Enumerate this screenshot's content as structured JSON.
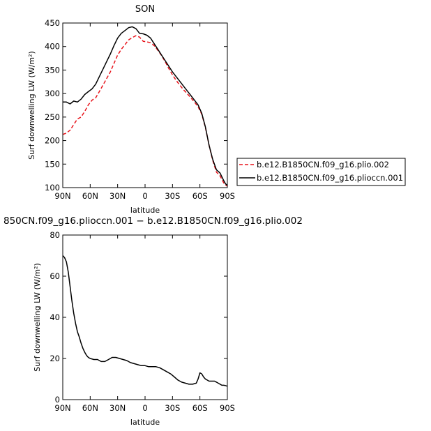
{
  "chart_data": [
    {
      "type": "line",
      "title": "SON",
      "xlabel": "latitude",
      "ylabel": "Surf downwelling LW (W/m²)",
      "xlim": [
        90,
        -90
      ],
      "ylim": [
        100,
        450
      ],
      "xticks": [
        {
          "value": 90,
          "label": "90N"
        },
        {
          "value": 60,
          "label": "60N"
        },
        {
          "value": 30,
          "label": "30N"
        },
        {
          "value": 0,
          "label": "0"
        },
        {
          "value": -30,
          "label": "30S"
        },
        {
          "value": -60,
          "label": "60S"
        },
        {
          "value": -90,
          "label": "90S"
        }
      ],
      "yticks": [
        100,
        150,
        200,
        250,
        300,
        350,
        400,
        450
      ],
      "legend_position": "right",
      "series": [
        {
          "name": "b.e12.B1850CN.f09_g16.plio.002",
          "color": "#e8141b",
          "dash": "dashed",
          "x": [
            90,
            86,
            82,
            78,
            74,
            70,
            66,
            62,
            58,
            54,
            50,
            46,
            42,
            38,
            34,
            30,
            26,
            22,
            18,
            14,
            10,
            6,
            2,
            -2,
            -6,
            -10,
            -14,
            -18,
            -22,
            -26,
            -30,
            -34,
            -38,
            -42,
            -46,
            -50,
            -54,
            -58,
            -62,
            -66,
            -70,
            -74,
            -78,
            -82,
            -86,
            -88,
            -90
          ],
          "y": [
            213,
            216,
            222,
            234,
            246,
            250,
            262,
            276,
            286,
            291,
            304,
            318,
            332,
            346,
            364,
            382,
            394,
            404,
            414,
            419,
            423,
            420,
            411,
            410,
            408,
            402,
            392,
            381,
            368,
            353,
            340,
            328,
            318,
            308,
            300,
            291,
            282,
            272,
            256,
            228,
            190,
            158,
            133,
            125,
            110,
            106,
            103
          ]
        },
        {
          "name": "b.e12.B1850CN.f09_g16.plioccn.001",
          "color": "#000000",
          "dash": "solid",
          "x": [
            90,
            86,
            82,
            78,
            74,
            70,
            66,
            62,
            58,
            54,
            50,
            46,
            42,
            38,
            34,
            30,
            26,
            22,
            18,
            14,
            10,
            6,
            2,
            -2,
            -6,
            -10,
            -14,
            -18,
            -22,
            -26,
            -30,
            -34,
            -38,
            -42,
            -46,
            -50,
            -54,
            -58,
            -62,
            -66,
            -70,
            -74,
            -78,
            -82,
            -86,
            -88,
            -90
          ],
          "y": [
            282,
            282,
            278,
            284,
            282,
            288,
            298,
            304,
            310,
            320,
            336,
            352,
            368,
            384,
            402,
            418,
            428,
            434,
            440,
            442,
            438,
            428,
            427,
            424,
            418,
            406,
            394,
            382,
            370,
            358,
            346,
            336,
            326,
            316,
            306,
            296,
            286,
            276,
            258,
            229,
            190,
            160,
            138,
            131,
            115,
            108,
            105
          ]
        }
      ]
    },
    {
      "type": "line",
      "title": "850CN.f09_g16.plioccn.001 − b.e12.B1850CN.f09_g16.plio.002",
      "xlabel": "latitude",
      "ylabel": "Surf downwelling LW (W/m²)",
      "xlim": [
        90,
        -90
      ],
      "ylim": [
        0,
        80
      ],
      "xticks": [
        {
          "value": 90,
          "label": "90N"
        },
        {
          "value": 60,
          "label": "60N"
        },
        {
          "value": 30,
          "label": "30N"
        },
        {
          "value": 0,
          "label": "0"
        },
        {
          "value": -30,
          "label": "30S"
        },
        {
          "value": -60,
          "label": "60S"
        },
        {
          "value": -90,
          "label": "90S"
        }
      ],
      "yticks": [
        0,
        20,
        40,
        60,
        80
      ],
      "series": [
        {
          "color": "#000000",
          "dash": "solid",
          "x": [
            90,
            88,
            86,
            84,
            82,
            80,
            78,
            76,
            74,
            72,
            70,
            68,
            66,
            64,
            62,
            60,
            56,
            52,
            48,
            44,
            40,
            36,
            32,
            28,
            24,
            20,
            16,
            12,
            8,
            4,
            0,
            -4,
            -8,
            -12,
            -16,
            -20,
            -24,
            -28,
            -32,
            -36,
            -40,
            -44,
            -48,
            -52,
            -56,
            -58,
            -60,
            -62,
            -64,
            -66,
            -68,
            -70,
            -72,
            -74,
            -76,
            -78,
            -80,
            -82,
            -84,
            -86,
            -88,
            -90
          ],
          "y": [
            70,
            69,
            67,
            62,
            55,
            48,
            42,
            37,
            33,
            30.5,
            27.5,
            25,
            23,
            21.5,
            20.5,
            20,
            19.5,
            19.5,
            18.5,
            18.5,
            19.5,
            20.5,
            20.5,
            20,
            19.5,
            19,
            18,
            17.5,
            17,
            16.5,
            16.5,
            16,
            16,
            16,
            15.5,
            14.5,
            13.5,
            12.5,
            11,
            9.5,
            8.5,
            8,
            7.5,
            7.5,
            8,
            10,
            13,
            12.5,
            11,
            10,
            9.5,
            9,
            9,
            9,
            9,
            8.5,
            8,
            7.5,
            7,
            7,
            6.8,
            6.5
          ]
        }
      ]
    }
  ]
}
